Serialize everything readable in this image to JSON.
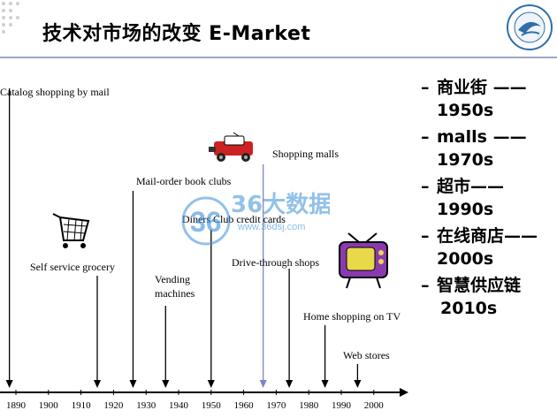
{
  "slide": {
    "title": "技术对市场的改变 E-Market"
  },
  "timeline": {
    "years": [
      "1890",
      "1900",
      "1910",
      "1920",
      "1930",
      "1940",
      "1950",
      "1960",
      "1970",
      "1980",
      "1990",
      "2000"
    ],
    "events": [
      {
        "label": "Catalog shopping by mail",
        "year": 1888
      },
      {
        "label": "Self service grocery",
        "year": 1915
      },
      {
        "label": "Mail-order book clubs",
        "year": 1926
      },
      {
        "label": "Vending",
        "label2": "machines",
        "year": 1936
      },
      {
        "label": "Diners Club credit cards",
        "year": 1950
      },
      {
        "label": "Shopping malls",
        "year": 1966
      },
      {
        "label": "Drive-through shops",
        "year": 1974
      },
      {
        "label": "Home shopping on TV",
        "year": 1985
      },
      {
        "label": "Web stores",
        "year": 1995
      }
    ]
  },
  "eras": [
    {
      "name": "商业街 ——",
      "decade": "1950s"
    },
    {
      "name": "malls ——",
      "decade": "1970s"
    },
    {
      "name": "超市——",
      "decade": "1990s"
    },
    {
      "name": "在线商店——",
      "decade": "2000s"
    },
    {
      "name": "智慧供应链",
      "decade": " 2010s"
    }
  ],
  "watermark": {
    "brand": "36大数据",
    "url": "www.36dsj.com"
  },
  "colors": {
    "accent": "#2f6fa8",
    "rule": "#9aa7c4",
    "car": "#cc2222",
    "tv": "#8a3ab0",
    "watermark": "#3a8fd8"
  }
}
